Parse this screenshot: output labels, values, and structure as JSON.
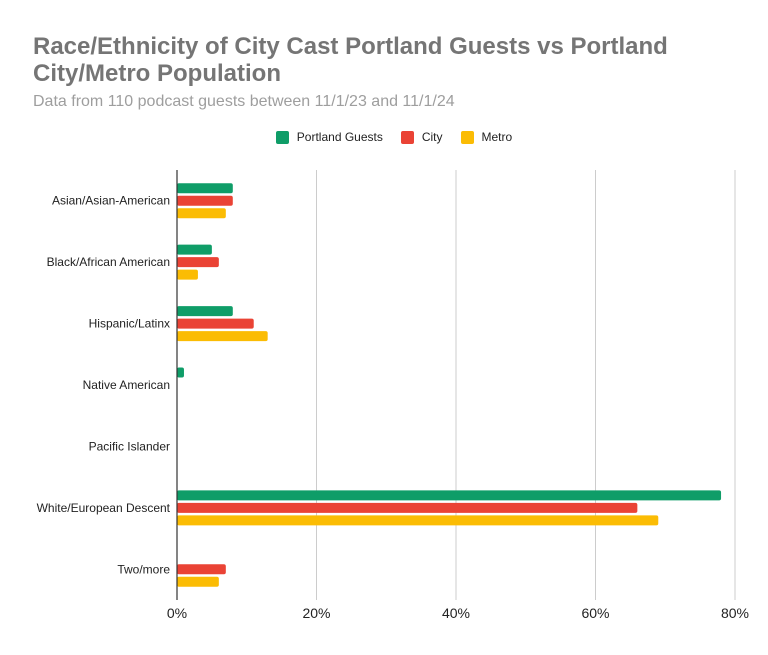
{
  "chart_data": {
    "type": "bar",
    "orientation": "horizontal",
    "title": "Race/Ethnicity of City Cast Portland Guests vs Portland City/Metro Population",
    "subtitle": "Data from 110 podcast guests between 11/1/23 and 11/1/24",
    "categories": [
      "Asian/Asian-American",
      "Black/African American",
      "Hispanic/Latinx",
      "Native American",
      "Pacific Islander",
      "White/European Descent",
      "Two/more"
    ],
    "series": [
      {
        "name": "Portland Guests",
        "color": "#0f9d68",
        "values": [
          8,
          5,
          8,
          1,
          0,
          78,
          0
        ]
      },
      {
        "name": "City",
        "color": "#ea4335",
        "values": [
          8,
          6,
          11,
          0,
          0,
          66,
          7
        ]
      },
      {
        "name": "Metro",
        "color": "#fbbc04",
        "values": [
          7,
          3,
          13,
          0,
          0,
          69,
          6
        ]
      }
    ],
    "xticks": [
      "0%",
      "20%",
      "40%",
      "60%",
      "80%"
    ],
    "xlim": [
      0,
      80
    ],
    "grid": true,
    "legend_position": "top"
  }
}
